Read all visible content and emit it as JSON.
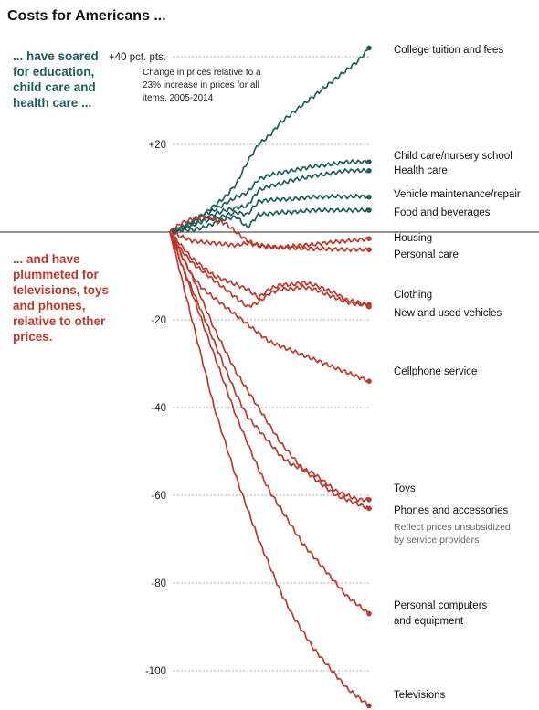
{
  "header": {
    "title": "Costs for Americans ...",
    "intro_up": [
      "... have soared",
      "for education,",
      "child care and",
      "health care ..."
    ],
    "intro_down": [
      "... and have",
      "plummeted for",
      "televisions, toys",
      "and phones,",
      "relative to other",
      "prices."
    ]
  },
  "colors": {
    "up": "#1f5f5b",
    "down": "#c0392b",
    "up_text": "#1f5f5b",
    "down_text": "#c0392b"
  },
  "chart_data": {
    "type": "line",
    "title": "Costs for Americans ...",
    "note": [
      "Change in prices relative to a",
      "23% increase in prices for all",
      "items, 2005-2014"
    ],
    "x_range": [
      2005,
      2014
    ],
    "ylim": [
      -111,
      44
    ],
    "y_ticks": [
      {
        "value": 40,
        "label": "+40 pct. pts."
      },
      {
        "value": 20,
        "label": "+20"
      },
      {
        "value": -20,
        "label": "-20"
      },
      {
        "value": -40,
        "label": "-40"
      },
      {
        "value": -60,
        "label": "-60"
      },
      {
        "value": -80,
        "label": "-80"
      },
      {
        "value": -100,
        "label": "-100"
      }
    ],
    "grid": true,
    "series": [
      {
        "name": "College tuition and fees",
        "direction": "up",
        "end_value": 42,
        "points": [
          [
            2005,
            0
          ],
          [
            2005.5,
            1
          ],
          [
            2006,
            2
          ],
          [
            2006.5,
            4
          ],
          [
            2007,
            6
          ],
          [
            2007.5,
            8
          ],
          [
            2008,
            11
          ],
          [
            2008.5,
            16
          ],
          [
            2009,
            20
          ],
          [
            2009.5,
            22
          ],
          [
            2010,
            25
          ],
          [
            2010.5,
            27
          ],
          [
            2011,
            29
          ],
          [
            2011.5,
            31
          ],
          [
            2012,
            33
          ],
          [
            2012.5,
            35
          ],
          [
            2013,
            37
          ],
          [
            2013.5,
            39
          ],
          [
            2014,
            42
          ]
        ]
      },
      {
        "name": "Child care/nursery school",
        "direction": "up",
        "end_value": 16,
        "points": [
          [
            2005,
            0
          ],
          [
            2005.5,
            1
          ],
          [
            2006,
            2.5
          ],
          [
            2006.5,
            4
          ],
          [
            2007,
            5
          ],
          [
            2007.5,
            6.5
          ],
          [
            2008,
            8
          ],
          [
            2008.5,
            9
          ],
          [
            2009,
            12
          ],
          [
            2009.5,
            13
          ],
          [
            2010,
            13.5
          ],
          [
            2010.5,
            14
          ],
          [
            2011,
            14.5
          ],
          [
            2011.5,
            15
          ],
          [
            2012,
            15.3
          ],
          [
            2012.5,
            15.6
          ],
          [
            2013,
            16
          ],
          [
            2013.5,
            16
          ],
          [
            2014,
            16
          ]
        ]
      },
      {
        "name": "Health care",
        "direction": "up",
        "end_value": 14,
        "points": [
          [
            2005,
            0
          ],
          [
            2005.5,
            0.8
          ],
          [
            2006,
            1.8
          ],
          [
            2006.5,
            3
          ],
          [
            2007,
            4
          ],
          [
            2007.5,
            5
          ],
          [
            2008,
            5.5
          ],
          [
            2008.5,
            6
          ],
          [
            2009,
            9.5
          ],
          [
            2009.5,
            10.5
          ],
          [
            2010,
            11
          ],
          [
            2010.5,
            11.8
          ],
          [
            2011,
            12.3
          ],
          [
            2011.5,
            12.8
          ],
          [
            2012,
            13.2
          ],
          [
            2012.5,
            13.6
          ],
          [
            2013,
            14
          ],
          [
            2013.5,
            14
          ],
          [
            2014,
            14
          ]
        ]
      },
      {
        "name": "Vehicle maintenance/repair",
        "direction": "up",
        "end_value": 8,
        "points": [
          [
            2005,
            0
          ],
          [
            2005.5,
            0.8
          ],
          [
            2006,
            1.5
          ],
          [
            2006.5,
            2.5
          ],
          [
            2007,
            3
          ],
          [
            2007.5,
            3.8
          ],
          [
            2008,
            4.5
          ],
          [
            2008.5,
            4
          ],
          [
            2009,
            7
          ],
          [
            2009.5,
            7.3
          ],
          [
            2010,
            7.5
          ],
          [
            2010.5,
            7.5
          ],
          [
            2011,
            7.8
          ],
          [
            2011.5,
            8
          ],
          [
            2012,
            8
          ],
          [
            2012.5,
            8.2
          ],
          [
            2013,
            8
          ],
          [
            2013.5,
            8.2
          ],
          [
            2014,
            8
          ]
        ]
      },
      {
        "name": "Food and beverages",
        "direction": "up",
        "end_value": 5,
        "points": [
          [
            2005,
            0
          ],
          [
            2005.5,
            0.5
          ],
          [
            2006,
            0.5
          ],
          [
            2006.5,
            1
          ],
          [
            2007,
            2
          ],
          [
            2007.5,
            3
          ],
          [
            2008,
            3.5
          ],
          [
            2008.5,
            1
          ],
          [
            2009,
            4
          ],
          [
            2009.5,
            4.2
          ],
          [
            2010,
            4.5
          ],
          [
            2010.5,
            4.5
          ],
          [
            2011,
            4.8
          ],
          [
            2011.5,
            5
          ],
          [
            2012,
            5
          ],
          [
            2012.5,
            5
          ],
          [
            2013,
            5
          ],
          [
            2013.5,
            5
          ],
          [
            2014,
            5
          ]
        ]
      },
      {
        "name": "Housing",
        "direction": "down",
        "end_value": -1.5,
        "points": [
          [
            2005,
            0
          ],
          [
            2005.5,
            2
          ],
          [
            2006,
            3
          ],
          [
            2006.5,
            3.5
          ],
          [
            2007,
            3
          ],
          [
            2007.5,
            2
          ],
          [
            2008,
            0
          ],
          [
            2008.5,
            -2
          ],
          [
            2009,
            -3
          ],
          [
            2009.5,
            -3.5
          ],
          [
            2010,
            -3.5
          ],
          [
            2010.5,
            -3.2
          ],
          [
            2011,
            -3
          ],
          [
            2011.5,
            -2.8
          ],
          [
            2012,
            -2.5
          ],
          [
            2012.5,
            -2.2
          ],
          [
            2013,
            -2
          ],
          [
            2013.5,
            -1.8
          ],
          [
            2014,
            -1.5
          ]
        ]
      },
      {
        "name": "Personal care",
        "direction": "down",
        "end_value": -4,
        "points": [
          [
            2005,
            0
          ],
          [
            2005.5,
            -1
          ],
          [
            2006,
            -2
          ],
          [
            2006.5,
            -2.3
          ],
          [
            2007,
            -2.5
          ],
          [
            2007.5,
            -2.8
          ],
          [
            2008,
            -3
          ],
          [
            2008.5,
            -2.5
          ],
          [
            2009,
            -3
          ],
          [
            2009.5,
            -3.2
          ],
          [
            2010,
            -3.5
          ],
          [
            2010.5,
            -3.6
          ],
          [
            2011,
            -3.7
          ],
          [
            2011.5,
            -3.8
          ],
          [
            2012,
            -3.8
          ],
          [
            2012.5,
            -3.9
          ],
          [
            2013,
            -4
          ],
          [
            2013.5,
            -4
          ],
          [
            2014,
            -4
          ]
        ]
      },
      {
        "name": "Clothing",
        "direction": "down",
        "end_value": -17,
        "points": [
          [
            2005,
            0
          ],
          [
            2005.5,
            -3
          ],
          [
            2006,
            -6
          ],
          [
            2006.5,
            -8
          ],
          [
            2007,
            -10
          ],
          [
            2007.5,
            -11
          ],
          [
            2008,
            -12
          ],
          [
            2008.5,
            -13
          ],
          [
            2009,
            -15
          ],
          [
            2009.5,
            -13
          ],
          [
            2010,
            -12
          ],
          [
            2010.5,
            -12
          ],
          [
            2011,
            -11.5
          ],
          [
            2011.5,
            -12
          ],
          [
            2012,
            -13
          ],
          [
            2012.5,
            -14
          ],
          [
            2013,
            -15.5
          ],
          [
            2013.5,
            -16
          ],
          [
            2014,
            -17
          ]
        ]
      },
      {
        "name": "New and used vehicles",
        "direction": "down",
        "end_value": -16.5,
        "points": [
          [
            2005,
            0
          ],
          [
            2005.5,
            -4
          ],
          [
            2006,
            -7
          ],
          [
            2006.5,
            -9
          ],
          [
            2007,
            -11
          ],
          [
            2007.5,
            -13
          ],
          [
            2008,
            -15
          ],
          [
            2008.5,
            -17
          ],
          [
            2009,
            -16
          ],
          [
            2009.5,
            -14
          ],
          [
            2010,
            -13
          ],
          [
            2010.5,
            -13
          ],
          [
            2011,
            -12.5
          ],
          [
            2011.5,
            -13
          ],
          [
            2012,
            -14
          ],
          [
            2012.5,
            -15
          ],
          [
            2013,
            -16
          ],
          [
            2013.5,
            -16.5
          ],
          [
            2014,
            -16.5
          ]
        ]
      },
      {
        "name": "Cellphone service",
        "direction": "down",
        "end_value": -34,
        "points": [
          [
            2005,
            0
          ],
          [
            2005.5,
            -5
          ],
          [
            2006,
            -10
          ],
          [
            2006.5,
            -13
          ],
          [
            2007,
            -15
          ],
          [
            2007.5,
            -17
          ],
          [
            2008,
            -19
          ],
          [
            2008.5,
            -21
          ],
          [
            2009,
            -23
          ],
          [
            2009.5,
            -25
          ],
          [
            2010,
            -26
          ],
          [
            2010.5,
            -27
          ],
          [
            2011,
            -28
          ],
          [
            2011.5,
            -29
          ],
          [
            2012,
            -30
          ],
          [
            2012.5,
            -31
          ],
          [
            2013,
            -32
          ],
          [
            2013.5,
            -33
          ],
          [
            2014,
            -34
          ]
        ]
      },
      {
        "name": "Toys",
        "direction": "down",
        "end_value": -63,
        "points": [
          [
            2005,
            0
          ],
          [
            2005.5,
            -5
          ],
          [
            2006,
            -10
          ],
          [
            2006.5,
            -16
          ],
          [
            2007,
            -22
          ],
          [
            2007.5,
            -27
          ],
          [
            2008,
            -32
          ],
          [
            2008.5,
            -36
          ],
          [
            2009,
            -40
          ],
          [
            2009.5,
            -44
          ],
          [
            2010,
            -48
          ],
          [
            2010.5,
            -51
          ],
          [
            2011,
            -54
          ],
          [
            2011.5,
            -56
          ],
          [
            2012,
            -58
          ],
          [
            2012.5,
            -60
          ],
          [
            2013,
            -61
          ],
          [
            2013.5,
            -62
          ],
          [
            2014,
            -63
          ]
        ]
      },
      {
        "name": "Phones and accessories",
        "direction": "down",
        "end_value": -61,
        "note": [
          "Reflect prices unsubsidized",
          "by service providers"
        ],
        "points": [
          [
            2005,
            0
          ],
          [
            2005.5,
            -7
          ],
          [
            2006,
            -13
          ],
          [
            2006.5,
            -19
          ],
          [
            2007,
            -25
          ],
          [
            2007.5,
            -31
          ],
          [
            2008,
            -37
          ],
          [
            2008.5,
            -42
          ],
          [
            2009,
            -45
          ],
          [
            2009.5,
            -48
          ],
          [
            2010,
            -51
          ],
          [
            2010.5,
            -53
          ],
          [
            2011,
            -54
          ],
          [
            2011.5,
            -55
          ],
          [
            2012,
            -57
          ],
          [
            2012.5,
            -59
          ],
          [
            2013,
            -60
          ],
          [
            2013.5,
            -61
          ],
          [
            2014,
            -61
          ]
        ]
      },
      {
        "name": "Personal computers and equipment",
        "direction": "down",
        "end_value": -87,
        "points": [
          [
            2005,
            0
          ],
          [
            2005.5,
            -7
          ],
          [
            2006,
            -14
          ],
          [
            2006.5,
            -21
          ],
          [
            2007,
            -28
          ],
          [
            2007.5,
            -35
          ],
          [
            2008,
            -42
          ],
          [
            2008.5,
            -48
          ],
          [
            2009,
            -54
          ],
          [
            2009.5,
            -59
          ],
          [
            2010,
            -63
          ],
          [
            2010.5,
            -67
          ],
          [
            2011,
            -71
          ],
          [
            2011.5,
            -74
          ],
          [
            2012,
            -77
          ],
          [
            2012.5,
            -80
          ],
          [
            2013,
            -83
          ],
          [
            2013.5,
            -85
          ],
          [
            2014,
            -87
          ]
        ]
      },
      {
        "name": "Televisions",
        "direction": "down",
        "end_value": -108,
        "points": [
          [
            2005,
            0
          ],
          [
            2005.5,
            -10
          ],
          [
            2006,
            -20
          ],
          [
            2006.5,
            -30
          ],
          [
            2007,
            -40
          ],
          [
            2007.5,
            -48
          ],
          [
            2008,
            -56
          ],
          [
            2008.5,
            -63
          ],
          [
            2009,
            -70
          ],
          [
            2009.5,
            -76
          ],
          [
            2010,
            -82
          ],
          [
            2010.5,
            -87
          ],
          [
            2011,
            -91
          ],
          [
            2011.5,
            -95
          ],
          [
            2012,
            -98
          ],
          [
            2012.5,
            -101
          ],
          [
            2013,
            -104
          ],
          [
            2013.5,
            -106
          ],
          [
            2014,
            -108
          ]
        ]
      }
    ]
  }
}
